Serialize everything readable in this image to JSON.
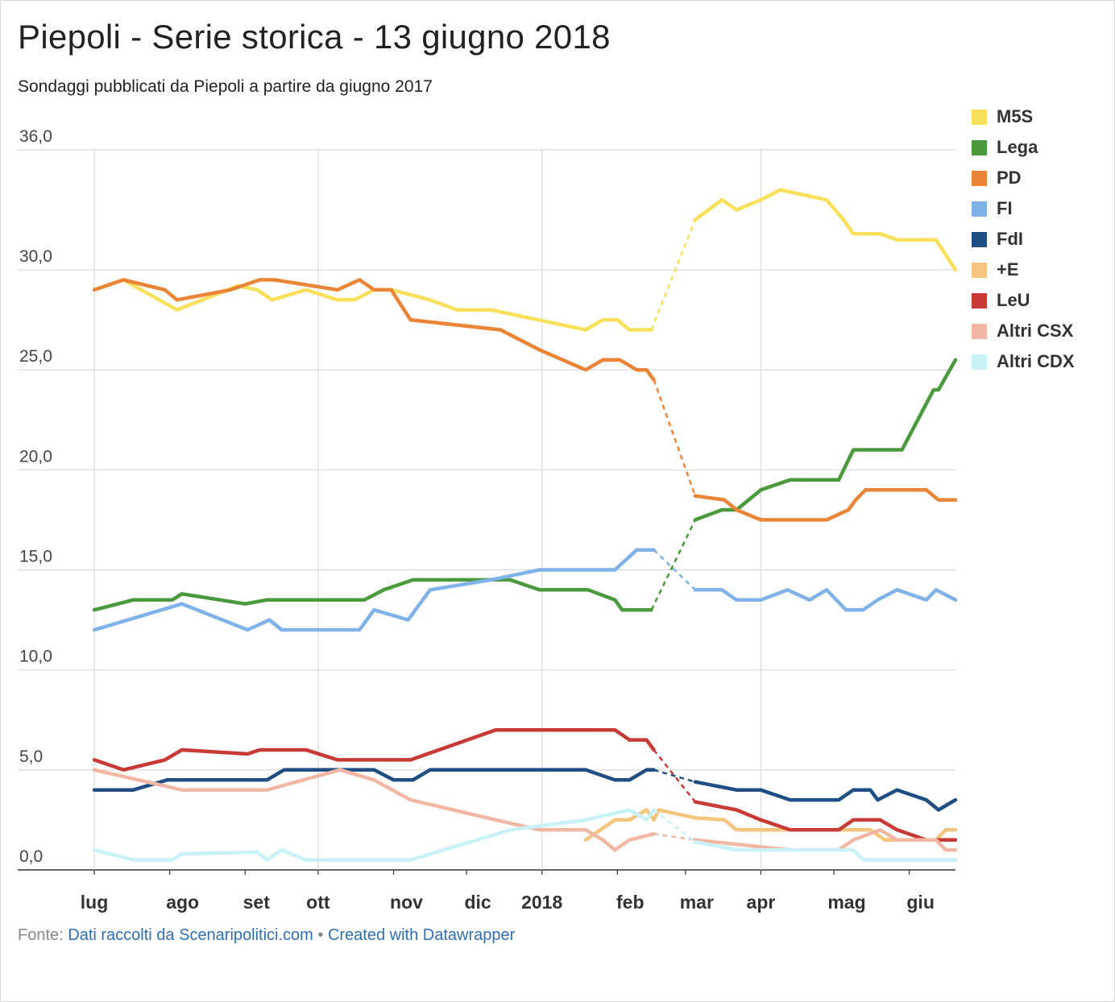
{
  "title": "Piepoli - Serie storica - 13 giugno 2018",
  "subtitle": "Sondaggi pubblicati da Piepoli a partire da giugno 2017",
  "footer": {
    "prefix": "Fonte: ",
    "source": "Dati raccolti da Scenaripolitici.com",
    "separator": " • ",
    "credit": "Created with Datawrapper"
  },
  "chart_data": {
    "type": "line",
    "ylim": [
      0,
      36
    ],
    "y_ticks": [
      "36,0",
      "30,0",
      "25,0",
      "20,0",
      "15,0",
      "10,0",
      "5,0",
      "0,0"
    ],
    "x_ticks": [
      "lug",
      "ago",
      "set",
      "ott",
      "nov",
      "dic",
      "2018",
      "feb",
      "mar",
      "apr",
      "mag",
      "giu"
    ],
    "grid": true,
    "legend_position": "right",
    "gap": {
      "from": "2018-02-16",
      "to": "2018-03-04",
      "style": "dashed"
    },
    "series": [
      {
        "name": "M5S",
        "color": "#f9e05a",
        "points": [
          [
            "2017-07-01",
            29
          ],
          [
            "2017-07-13",
            29.5
          ],
          [
            "2017-08-04",
            28
          ],
          [
            "2017-08-29",
            29.2
          ],
          [
            "2017-09-06",
            29
          ],
          [
            "2017-09-12",
            28.5
          ],
          [
            "2017-09-26",
            29
          ],
          [
            "2017-10-09",
            28.5
          ],
          [
            "2017-10-16",
            28.5
          ],
          [
            "2017-10-24",
            29
          ],
          [
            "2017-10-31",
            29
          ],
          [
            "2017-11-16",
            28.5
          ],
          [
            "2017-11-27",
            28
          ],
          [
            "2017-12-11",
            28
          ],
          [
            "2018-01-19",
            27
          ],
          [
            "2018-01-26",
            27.5
          ],
          [
            "2018-02-01",
            27.5
          ],
          [
            "2018-02-06",
            27
          ],
          [
            "2018-02-15",
            27
          ],
          [
            "2018-03-05",
            32.5
          ],
          [
            "2018-03-16",
            33.5
          ],
          [
            "2018-03-22",
            33
          ],
          [
            "2018-04-01",
            33.5
          ],
          [
            "2018-04-09",
            34
          ],
          [
            "2018-04-28",
            33.5
          ],
          [
            "2018-05-05",
            32.5
          ],
          [
            "2018-05-09",
            31.8
          ],
          [
            "2018-05-20",
            31.8
          ],
          [
            "2018-05-27",
            31.5
          ],
          [
            "2018-06-12",
            31.5
          ],
          [
            "2018-06-20",
            30
          ]
        ]
      },
      {
        "name": "Lega",
        "color": "#4a9a3d",
        "points": [
          [
            "2017-07-01",
            13
          ],
          [
            "2017-07-17",
            13.5
          ],
          [
            "2017-08-02",
            13.5
          ],
          [
            "2017-08-06",
            13.8
          ],
          [
            "2017-09-01",
            13.3
          ],
          [
            "2017-09-10",
            13.5
          ],
          [
            "2017-10-20",
            13.5
          ],
          [
            "2017-10-28",
            14
          ],
          [
            "2017-11-09",
            14.5
          ],
          [
            "2017-12-19",
            14.5
          ],
          [
            "2017-12-31",
            14
          ],
          [
            "2018-01-20",
            14
          ],
          [
            "2018-01-31",
            13.5
          ],
          [
            "2018-02-03",
            13
          ],
          [
            "2018-02-15",
            13
          ],
          [
            "2018-03-05",
            17.5
          ],
          [
            "2018-03-16",
            18
          ],
          [
            "2018-03-22",
            18
          ],
          [
            "2018-04-01",
            19
          ],
          [
            "2018-04-13",
            19.5
          ],
          [
            "2018-05-03",
            19.5
          ],
          [
            "2018-05-09",
            21
          ],
          [
            "2018-05-29",
            21
          ],
          [
            "2018-06-11",
            24
          ],
          [
            "2018-06-13",
            24
          ],
          [
            "2018-06-20",
            25.5
          ]
        ]
      },
      {
        "name": "PD",
        "color": "#ea8538",
        "points": [
          [
            "2017-07-01",
            29
          ],
          [
            "2017-07-13",
            29.5
          ],
          [
            "2017-07-30",
            29
          ],
          [
            "2017-08-04",
            28.5
          ],
          [
            "2017-08-26",
            29
          ],
          [
            "2017-09-07",
            29.5
          ],
          [
            "2017-09-13",
            29.5
          ],
          [
            "2017-10-09",
            29
          ],
          [
            "2017-10-18",
            29.5
          ],
          [
            "2017-10-24",
            29
          ],
          [
            "2017-10-31",
            29
          ],
          [
            "2017-11-08",
            27.5
          ],
          [
            "2017-12-15",
            27
          ],
          [
            "2017-12-31",
            26
          ],
          [
            "2018-01-19",
            25
          ],
          [
            "2018-01-26",
            25.5
          ],
          [
            "2018-02-02",
            25.5
          ],
          [
            "2018-02-09",
            25
          ],
          [
            "2018-02-13",
            25
          ],
          [
            "2018-02-16",
            24.5
          ],
          [
            "2018-03-05",
            18.7
          ],
          [
            "2018-03-17",
            18.5
          ],
          [
            "2018-03-22",
            18
          ],
          [
            "2018-04-01",
            17.5
          ],
          [
            "2018-04-28",
            17.5
          ],
          [
            "2018-05-07",
            18
          ],
          [
            "2018-05-10",
            18.5
          ],
          [
            "2018-05-14",
            19
          ],
          [
            "2018-06-08",
            19
          ],
          [
            "2018-06-13",
            18.5
          ],
          [
            "2018-06-20",
            18.5
          ]
        ]
      },
      {
        "name": "FI",
        "color": "#7fb2e8",
        "points": [
          [
            "2017-07-01",
            12
          ],
          [
            "2017-08-06",
            13.3
          ],
          [
            "2017-09-02",
            12
          ],
          [
            "2017-09-11",
            12.5
          ],
          [
            "2017-09-16",
            12
          ],
          [
            "2017-10-18",
            12
          ],
          [
            "2017-10-24",
            13
          ],
          [
            "2017-11-07",
            12.5
          ],
          [
            "2017-11-16",
            14
          ],
          [
            "2017-12-11",
            14.5
          ],
          [
            "2017-12-31",
            15
          ],
          [
            "2018-01-31",
            15
          ],
          [
            "2018-02-09",
            16
          ],
          [
            "2018-02-16",
            16
          ],
          [
            "2018-03-05",
            14
          ],
          [
            "2018-03-16",
            14
          ],
          [
            "2018-03-22",
            13.5
          ],
          [
            "2018-04-01",
            13.5
          ],
          [
            "2018-04-12",
            14
          ],
          [
            "2018-04-21",
            13.5
          ],
          [
            "2018-04-28",
            14
          ],
          [
            "2018-05-06",
            13
          ],
          [
            "2018-05-13",
            13
          ],
          [
            "2018-05-19",
            13.5
          ],
          [
            "2018-05-27",
            14
          ],
          [
            "2018-06-08",
            13.5
          ],
          [
            "2018-06-12",
            14
          ],
          [
            "2018-06-20",
            13.5
          ]
        ]
      },
      {
        "name": "FdI",
        "color": "#1f4e85",
        "points": [
          [
            "2017-07-01",
            4
          ],
          [
            "2017-07-17",
            4
          ],
          [
            "2017-07-31",
            4.5
          ],
          [
            "2017-08-10",
            4.5
          ],
          [
            "2017-09-10",
            4.5
          ],
          [
            "2017-09-17",
            5
          ],
          [
            "2017-10-24",
            5
          ],
          [
            "2017-11-01",
            4.5
          ],
          [
            "2017-11-09",
            4.5
          ],
          [
            "2017-11-16",
            5
          ],
          [
            "2018-01-19",
            5
          ],
          [
            "2018-01-31",
            4.5
          ],
          [
            "2018-02-06",
            4.5
          ],
          [
            "2018-02-13",
            5
          ],
          [
            "2018-02-16",
            5
          ],
          [
            "2018-03-05",
            4.4
          ],
          [
            "2018-03-22",
            4
          ],
          [
            "2018-04-01",
            4
          ],
          [
            "2018-04-13",
            3.5
          ],
          [
            "2018-05-03",
            3.5
          ],
          [
            "2018-05-09",
            4
          ],
          [
            "2018-05-16",
            4
          ],
          [
            "2018-05-19",
            3.5
          ],
          [
            "2018-05-27",
            4
          ],
          [
            "2018-06-08",
            3.5
          ],
          [
            "2018-06-13",
            3
          ],
          [
            "2018-06-20",
            3.5
          ]
        ]
      },
      {
        "name": "+E",
        "color": "#f5c57e",
        "points": [
          [
            "2018-01-19",
            1.5
          ],
          [
            "2018-01-31",
            2.5
          ],
          [
            "2018-02-06",
            2.5
          ],
          [
            "2018-02-13",
            3
          ],
          [
            "2018-02-16",
            2.5
          ],
          [
            "2018-02-18",
            3
          ],
          [
            "2018-03-05",
            2.6
          ],
          [
            "2018-03-17",
            2.5
          ],
          [
            "2018-03-22",
            2
          ],
          [
            "2018-04-28",
            2
          ],
          [
            "2018-05-06",
            2
          ],
          [
            "2018-05-16",
            2
          ],
          [
            "2018-05-22",
            1.5
          ],
          [
            "2018-06-12",
            1.5
          ],
          [
            "2018-06-16",
            2
          ],
          [
            "2018-06-20",
            2
          ]
        ]
      },
      {
        "name": "LeU",
        "color": "#c83a36",
        "points": [
          [
            "2017-07-01",
            5.5
          ],
          [
            "2017-07-13",
            5
          ],
          [
            "2017-07-30",
            5.5
          ],
          [
            "2017-08-06",
            6
          ],
          [
            "2017-09-02",
            5.8
          ],
          [
            "2017-09-07",
            6
          ],
          [
            "2017-09-26",
            6
          ],
          [
            "2017-10-09",
            5.5
          ],
          [
            "2017-11-08",
            5.5
          ],
          [
            "2017-12-13",
            7
          ],
          [
            "2018-01-31",
            7
          ],
          [
            "2018-02-06",
            6.5
          ],
          [
            "2018-02-13",
            6.5
          ],
          [
            "2018-02-16",
            6
          ],
          [
            "2018-03-05",
            3.4
          ],
          [
            "2018-03-22",
            3
          ],
          [
            "2018-04-01",
            2.5
          ],
          [
            "2018-04-13",
            2
          ],
          [
            "2018-05-03",
            2
          ],
          [
            "2018-05-09",
            2.5
          ],
          [
            "2018-05-20",
            2.5
          ],
          [
            "2018-05-27",
            2
          ],
          [
            "2018-06-08",
            1.5
          ],
          [
            "2018-06-20",
            1.5
          ]
        ]
      },
      {
        "name": "Altri CSX",
        "color": "#f2b7a3",
        "points": [
          [
            "2017-07-01",
            5
          ],
          [
            "2017-08-06",
            4
          ],
          [
            "2017-09-10",
            4
          ],
          [
            "2017-10-10",
            5
          ],
          [
            "2017-10-24",
            4.5
          ],
          [
            "2017-11-08",
            3.5
          ],
          [
            "2017-12-13",
            2.5
          ],
          [
            "2017-12-31",
            2
          ],
          [
            "2018-01-19",
            2
          ],
          [
            "2018-01-26",
            1.5
          ],
          [
            "2018-01-31",
            1
          ],
          [
            "2018-02-06",
            1.5
          ],
          [
            "2018-02-16",
            1.8
          ],
          [
            "2018-03-05",
            1.5
          ],
          [
            "2018-04-13",
            1
          ],
          [
            "2018-05-03",
            1
          ],
          [
            "2018-05-09",
            1.5
          ],
          [
            "2018-05-20",
            2
          ],
          [
            "2018-05-27",
            1.5
          ],
          [
            "2018-06-12",
            1.5
          ],
          [
            "2018-06-16",
            1
          ],
          [
            "2018-06-20",
            1
          ]
        ]
      },
      {
        "name": "Altri CDX",
        "color": "#c9f2f8",
        "points": [
          [
            "2017-07-01",
            1
          ],
          [
            "2017-07-17",
            0.5
          ],
          [
            "2017-08-02",
            0.5
          ],
          [
            "2017-08-06",
            0.8
          ],
          [
            "2017-09-06",
            0.9
          ],
          [
            "2017-09-10",
            0.5
          ],
          [
            "2017-09-16",
            1
          ],
          [
            "2017-09-26",
            0.5
          ],
          [
            "2017-11-08",
            0.5
          ],
          [
            "2017-12-19",
            2
          ],
          [
            "2018-01-19",
            2.5
          ],
          [
            "2018-02-06",
            3
          ],
          [
            "2018-02-13",
            2.5
          ],
          [
            "2018-02-16",
            3
          ],
          [
            "2018-03-05",
            1.4
          ],
          [
            "2018-03-22",
            1
          ],
          [
            "2018-05-09",
            1
          ],
          [
            "2018-05-13",
            0.5
          ],
          [
            "2018-06-20",
            0.5
          ]
        ]
      }
    ]
  }
}
